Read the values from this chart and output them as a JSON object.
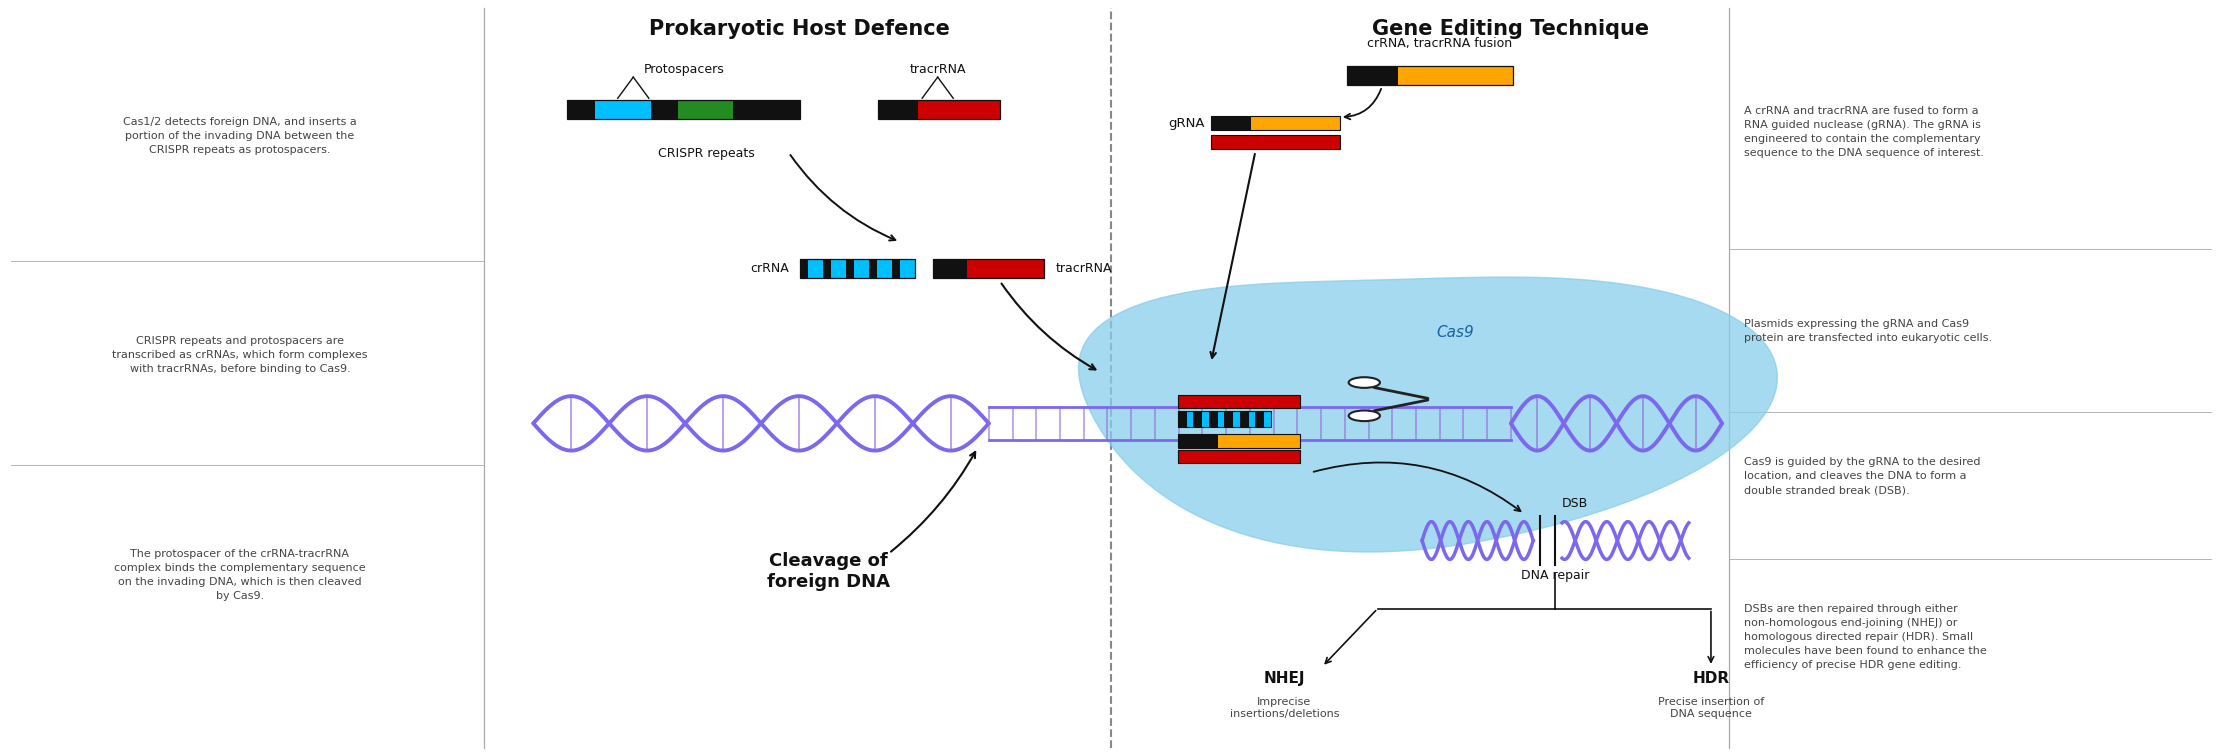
{
  "title_left": "Prokaryotic Host Defence",
  "title_right": "Gene Editing Technique",
  "title_fontsize": 15,
  "bg_color": "#ffffff",
  "text_color": "#444444",
  "left_text_1": "Cas1/2 detects foreign DNA, and inserts a\nportion of the invading DNA between the\nCRISPR repeats as protospacers.",
  "left_text_2": "CRISPR repeats and protospacers are\ntranscribed as crRNAs, which form complexes\nwith tracrRNAs, before binding to Cas9.",
  "left_text_3": "The protospacer of the crRNA-tracrRNA\ncomplex binds the complementary sequence\non the invading DNA, which is then cleaved\nby Cas9.",
  "right_text_1": "A crRNA and tracrRNA are fused to form a\nRNA guided nuclease (gRNA). The gRNA is\nengineered to contain the complementary\nsequence to the DNA sequence of interest.",
  "right_text_2": "Plasmids expressing the gRNA and Cas9\nprotein are transfected into eukaryotic cells.",
  "right_text_3": "Cas9 is guided by the gRNA to the desired\nlocation, and cleaves the DNA to form a\ndouble stranded break (DSB).",
  "right_text_4": "DSBs are then repaired through either\nnon-homologous end-joining (NHEJ) or\nhomologous directed repair (HDR). Small\nmolecules have been found to enhance the\nefficiency of precise HDR gene editing.",
  "purple": "#7B68EE",
  "purple_dark": "#6656cc",
  "cyan_blob": "#87CEEB",
  "bright_cyan": "#00BFFF",
  "green": "#228B22",
  "orange": "#FFA500",
  "red": "#CC0000",
  "black": "#111111",
  "gray": "#888888",
  "mid_gray": "#aaaaaa",
  "dark_gray": "#555555",
  "rung_color": "#9370DB"
}
